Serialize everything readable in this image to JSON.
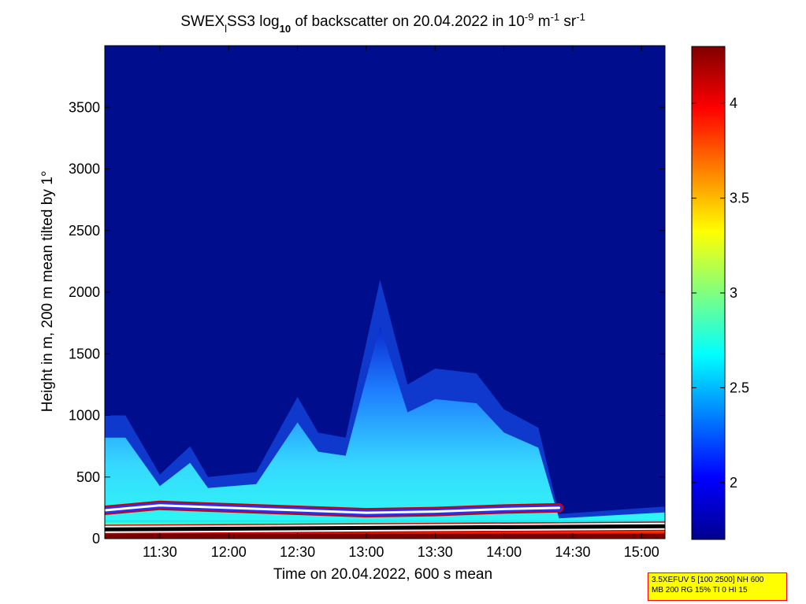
{
  "chart_data": {
    "type": "heatmap",
    "title": {
      "part1": "SWEX",
      "sub1": "l",
      "part2": "SS3 log",
      "sub2": "10",
      "part3": " of backscatter on 20.04.2022 in 10",
      "sup1": "-9",
      "part4": " m",
      "sup2": "-1",
      "part5": " sr",
      "sup3": "-1"
    },
    "xlabel": "Time on 20.04.2022, 600 s mean",
    "ylabel": "Height in m, 200 m mean tilted by 1°",
    "x_ticks": [
      "11:30",
      "12:00",
      "12:30",
      "13:00",
      "13:30",
      "14:00",
      "14:30",
      "15:00"
    ],
    "x_tick_hours": [
      11.5,
      12.0,
      12.5,
      13.0,
      13.5,
      14.0,
      14.5,
      15.0
    ],
    "xlim_hours": [
      11.1,
      15.17
    ],
    "y_ticks": [
      "0",
      "500",
      "1000",
      "1500",
      "2000",
      "2500",
      "3000",
      "3500"
    ],
    "y_tick_values": [
      0,
      500,
      1000,
      1500,
      2000,
      2500,
      3000,
      3500
    ],
    "ylim": [
      0,
      4000
    ],
    "colorbar": {
      "ticks": [
        "2",
        "2.5",
        "3",
        "3.5",
        "4"
      ],
      "tick_values": [
        2,
        2.5,
        3,
        3.5,
        4
      ],
      "range": [
        1.7,
        4.3
      ],
      "colormap": "jet"
    },
    "aerosol_layer_top_m": [
      {
        "t": 11.1,
        "top": 1000
      },
      {
        "t": 11.25,
        "top": 1000
      },
      {
        "t": 11.5,
        "top": 520
      },
      {
        "t": 11.72,
        "top": 750
      },
      {
        "t": 11.85,
        "top": 500
      },
      {
        "t": 12.2,
        "top": 540
      },
      {
        "t": 12.5,
        "top": 1150
      },
      {
        "t": 12.65,
        "top": 860
      },
      {
        "t": 12.85,
        "top": 820
      },
      {
        "t": 13.1,
        "top": 2100
      },
      {
        "t": 13.3,
        "top": 1250
      },
      {
        "t": 13.5,
        "top": 1380
      },
      {
        "t": 13.8,
        "top": 1340
      },
      {
        "t": 14.0,
        "top": 1050
      },
      {
        "t": 14.25,
        "top": 900
      },
      {
        "t": 14.4,
        "top": 200
      },
      {
        "t": 15.17,
        "top": 260
      }
    ],
    "boundary_line_m": [
      {
        "t": 11.1,
        "h": 230
      },
      {
        "t": 11.5,
        "h": 270
      },
      {
        "t": 12.0,
        "h": 250
      },
      {
        "t": 12.5,
        "h": 230
      },
      {
        "t": 13.0,
        "h": 210
      },
      {
        "t": 13.5,
        "h": 220
      },
      {
        "t": 14.0,
        "h": 240
      },
      {
        "t": 14.4,
        "h": 250
      }
    ]
  },
  "info_box": {
    "line1": "3.5XEFUV 5 [100 2500] NH 600",
    "line2": "MB 200 RG 15% TI 0 HI 15"
  },
  "colors": {
    "background_field": "#000e8e",
    "boundary_line": "#ffffff",
    "boundary_outline": "#d00000"
  }
}
